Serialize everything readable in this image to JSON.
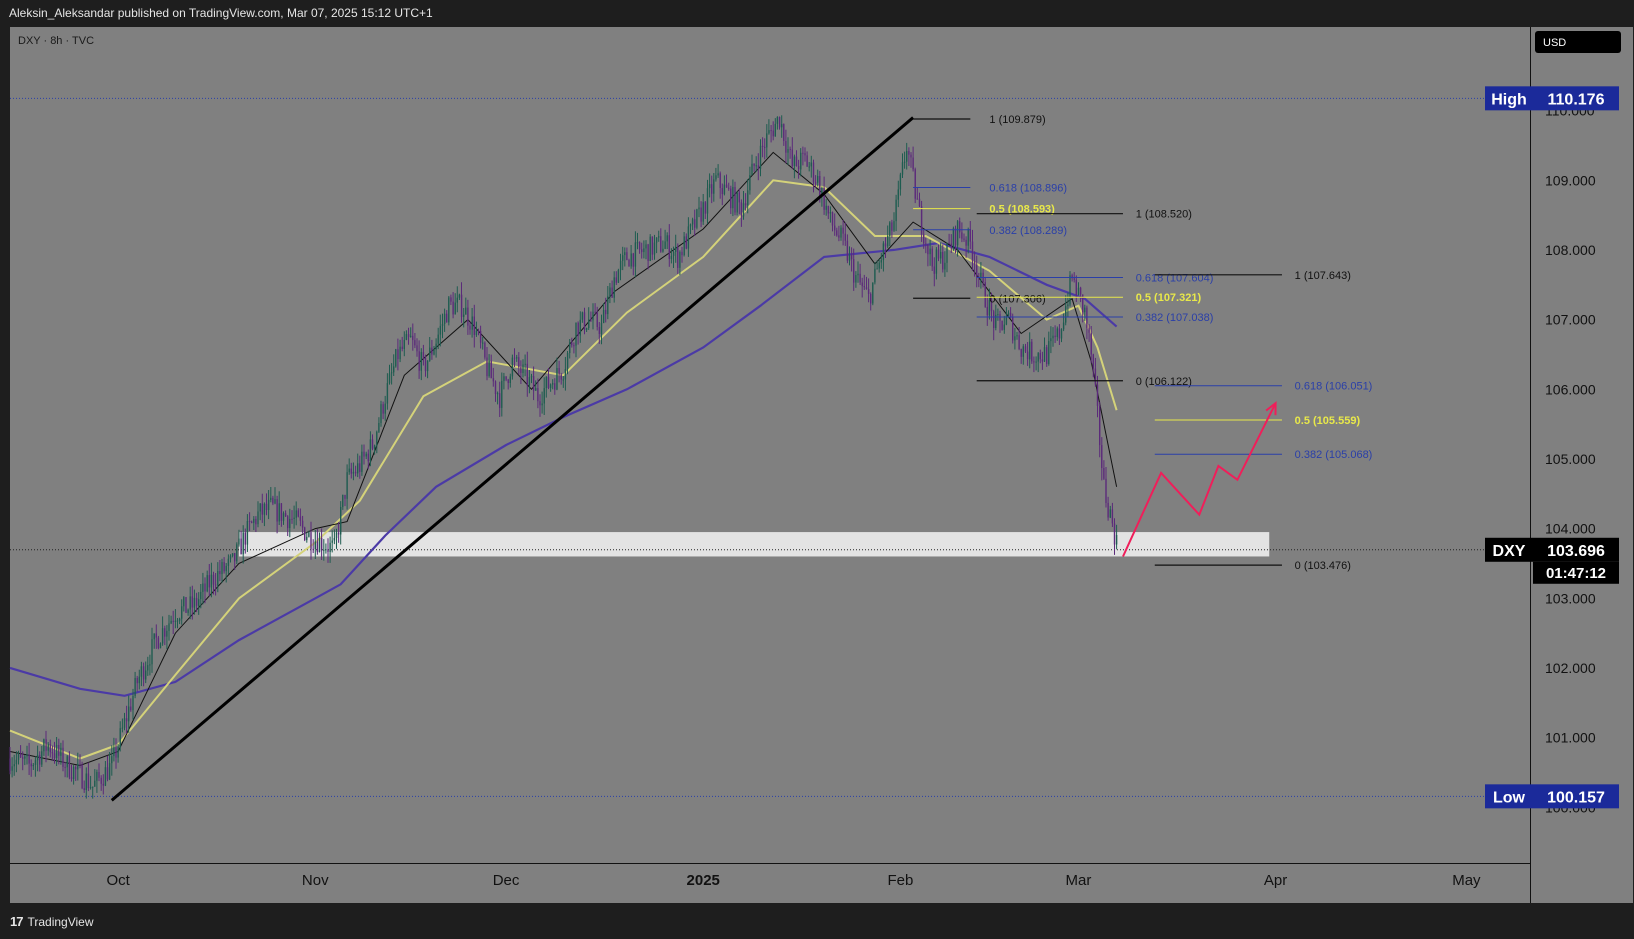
{
  "header": {
    "publisher_line": "Aleksin_Aleksandar published on TradingView.com, Mar 07, 2025 15:12 UTC+1"
  },
  "footer": {
    "brand_logo": "17",
    "brand_name": "TradingView"
  },
  "colors": {
    "plot_bg": "#808080",
    "bull_candle": "#1e5c50",
    "bear_candle": "#5b2a7a",
    "ema_fast": "#111111",
    "ema_mid": "#d4d27a",
    "ema_slow": "#4b3aa6",
    "trendline": "#000000",
    "fib_blue": "#2a3fa8",
    "fib_yellow": "#e8e84a",
    "projection": "#f01e5a",
    "badge_blue": "#1b2a9a",
    "badge_dark": "#000000"
  },
  "chart_data": {
    "type": "candlestick",
    "symbol_line": "DXY · 8h · TVC",
    "currency": "USD",
    "y_ticks": [
      "110.000",
      "109.000",
      "108.000",
      "107.000",
      "106.000",
      "105.000",
      "104.000",
      "103.000",
      "102.000",
      "101.000",
      "100.000"
    ],
    "y_tick_values": [
      110,
      109,
      108,
      107,
      106,
      105,
      104,
      103,
      102,
      101,
      100
    ],
    "ylim": [
      99.2,
      111.2
    ],
    "x_ticks": [
      {
        "label": "Oct",
        "date": "2024-10-01"
      },
      {
        "label": "Nov",
        "date": "2024-11-01"
      },
      {
        "label": "Dec",
        "date": "2024-12-01"
      },
      {
        "label": "2025",
        "date": "2025-01-01"
      },
      {
        "label": "Feb",
        "date": "2025-02-01"
      },
      {
        "label": "Mar",
        "date": "2025-03-01"
      },
      {
        "label": "Apr",
        "date": "2025-04-01"
      },
      {
        "label": "May",
        "date": "2025-05-01"
      }
    ],
    "xlim": [
      "2024-09-14",
      "2025-05-11"
    ],
    "price_path": [
      [
        "2024-09-14",
        100.7
      ],
      [
        "2024-09-17",
        100.6
      ],
      [
        "2024-09-20",
        100.9
      ],
      [
        "2024-09-23",
        100.6
      ],
      [
        "2024-09-26",
        100.4
      ],
      [
        "2024-09-27",
        100.3
      ],
      [
        "2024-09-30",
        100.6
      ],
      [
        "2024-10-02",
        101.2
      ],
      [
        "2024-10-04",
        101.8
      ],
      [
        "2024-10-07",
        102.4
      ],
      [
        "2024-10-10",
        102.8
      ],
      [
        "2024-10-13",
        102.9
      ],
      [
        "2024-10-16",
        103.3
      ],
      [
        "2024-10-19",
        103.5
      ],
      [
        "2024-10-21",
        103.9
      ],
      [
        "2024-10-23",
        104.2
      ],
      [
        "2024-10-25",
        104.3
      ],
      [
        "2024-10-27",
        104.2
      ],
      [
        "2024-10-29",
        104.1
      ],
      [
        "2024-10-31",
        103.9
      ],
      [
        "2024-11-02",
        103.8
      ],
      [
        "2024-11-04",
        103.7
      ],
      [
        "2024-11-06",
        104.7
      ],
      [
        "2024-11-08",
        104.9
      ],
      [
        "2024-11-10",
        105.2
      ],
      [
        "2024-11-12",
        105.9
      ],
      [
        "2024-11-14",
        106.5
      ],
      [
        "2024-11-16",
        106.7
      ],
      [
        "2024-11-18",
        106.3
      ],
      [
        "2024-11-20",
        106.7
      ],
      [
        "2024-11-22",
        107.2
      ],
      [
        "2024-11-24",
        107.2
      ],
      [
        "2024-11-26",
        106.9
      ],
      [
        "2024-11-28",
        106.3
      ],
      [
        "2024-11-30",
        105.9
      ],
      [
        "2024-12-02",
        106.4
      ],
      [
        "2024-12-04",
        106.2
      ],
      [
        "2024-12-06",
        105.9
      ],
      [
        "2024-12-08",
        106.1
      ],
      [
        "2024-12-10",
        106.3
      ],
      [
        "2024-12-12",
        106.9
      ],
      [
        "2024-12-14",
        107.0
      ],
      [
        "2024-12-16",
        106.9
      ],
      [
        "2024-12-18",
        107.6
      ],
      [
        "2024-12-20",
        107.9
      ],
      [
        "2024-12-23",
        108.0
      ],
      [
        "2024-12-26",
        108.1
      ],
      [
        "2024-12-28",
        107.9
      ],
      [
        "2025-01-01",
        108.6
      ],
      [
        "2025-01-03",
        109.0
      ],
      [
        "2025-01-05",
        108.8
      ],
      [
        "2025-01-07",
        108.6
      ],
      [
        "2025-01-09",
        109.2
      ],
      [
        "2025-01-11",
        109.6
      ],
      [
        "2025-01-13",
        109.9
      ],
      [
        "2025-01-15",
        109.2
      ],
      [
        "2025-01-17",
        109.3
      ],
      [
        "2025-01-19",
        109.0
      ],
      [
        "2025-01-21",
        108.4
      ],
      [
        "2025-01-23",
        108.1
      ],
      [
        "2025-01-25",
        107.6
      ],
      [
        "2025-01-27",
        107.3
      ],
      [
        "2025-01-29",
        107.9
      ],
      [
        "2025-01-31",
        108.4
      ],
      [
        "2025-02-02",
        109.5
      ],
      [
        "2025-02-04",
        108.5
      ],
      [
        "2025-02-06",
        107.8
      ],
      [
        "2025-02-08",
        107.9
      ],
      [
        "2025-02-10",
        108.3
      ],
      [
        "2025-02-12",
        108.1
      ],
      [
        "2025-02-14",
        107.4
      ],
      [
        "2025-02-16",
        106.9
      ],
      [
        "2025-02-18",
        107.0
      ],
      [
        "2025-02-20",
        106.6
      ],
      [
        "2025-02-22",
        106.5
      ],
      [
        "2025-02-24",
        106.5
      ],
      [
        "2025-02-26",
        106.8
      ],
      [
        "2025-02-28",
        107.6
      ],
      [
        "2025-03-02",
        107.1
      ],
      [
        "2025-03-03",
        106.5
      ],
      [
        "2025-03-04",
        105.6
      ],
      [
        "2025-03-05",
        104.6
      ],
      [
        "2025-03-06",
        104.2
      ],
      [
        "2025-03-07",
        103.8
      ]
    ],
    "ema_slow_path": [
      [
        "2024-09-14",
        102.0
      ],
      [
        "2024-09-25",
        101.7
      ],
      [
        "2024-10-02",
        101.6
      ],
      [
        "2024-10-10",
        101.8
      ],
      [
        "2024-10-20",
        102.4
      ],
      [
        "2024-11-01",
        103.0
      ],
      [
        "2024-11-05",
        103.2
      ],
      [
        "2024-11-12",
        103.9
      ],
      [
        "2024-11-20",
        104.6
      ],
      [
        "2024-12-01",
        105.2
      ],
      [
        "2024-12-10",
        105.6
      ],
      [
        "2024-12-20",
        106.0
      ],
      [
        "2025-01-01",
        106.6
      ],
      [
        "2025-01-10",
        107.2
      ],
      [
        "2025-01-20",
        107.9
      ],
      [
        "2025-01-31",
        108.0
      ],
      [
        "2025-02-07",
        108.1
      ],
      [
        "2025-02-15",
        107.9
      ],
      [
        "2025-02-24",
        107.5
      ],
      [
        "2025-03-02",
        107.3
      ],
      [
        "2025-03-07",
        106.9
      ]
    ],
    "ema_mid_path": [
      [
        "2024-09-14",
        101.1
      ],
      [
        "2024-09-25",
        100.7
      ],
      [
        "2024-10-01",
        100.9
      ],
      [
        "2024-10-10",
        101.9
      ],
      [
        "2024-10-20",
        103.0
      ],
      [
        "2024-11-01",
        103.8
      ],
      [
        "2024-11-08",
        104.4
      ],
      [
        "2024-11-18",
        105.9
      ],
      [
        "2024-11-28",
        106.4
      ],
      [
        "2024-12-10",
        106.2
      ],
      [
        "2024-12-20",
        107.1
      ],
      [
        "2025-01-01",
        107.9
      ],
      [
        "2025-01-12",
        109.0
      ],
      [
        "2025-01-20",
        108.9
      ],
      [
        "2025-01-28",
        108.2
      ],
      [
        "2025-02-05",
        108.2
      ],
      [
        "2025-02-15",
        107.7
      ],
      [
        "2025-02-24",
        107.0
      ],
      [
        "2025-03-01",
        107.2
      ],
      [
        "2025-03-04",
        106.6
      ],
      [
        "2025-03-07",
        105.7
      ]
    ],
    "ema_fast_path": [
      [
        "2024-09-14",
        100.8
      ],
      [
        "2024-09-25",
        100.6
      ],
      [
        "2024-10-01",
        100.8
      ],
      [
        "2024-10-10",
        102.5
      ],
      [
        "2024-10-20",
        103.5
      ],
      [
        "2024-11-01",
        104.0
      ],
      [
        "2024-11-06",
        104.1
      ],
      [
        "2024-11-15",
        106.2
      ],
      [
        "2024-11-25",
        107.0
      ],
      [
        "2024-12-05",
        106.0
      ],
      [
        "2024-12-18",
        107.4
      ],
      [
        "2025-01-01",
        108.3
      ],
      [
        "2025-01-12",
        109.4
      ],
      [
        "2025-01-20",
        108.8
      ],
      [
        "2025-01-28",
        107.8
      ],
      [
        "2025-02-03",
        108.4
      ],
      [
        "2025-02-10",
        108.0
      ],
      [
        "2025-02-20",
        106.8
      ],
      [
        "2025-02-28",
        107.3
      ],
      [
        "2025-03-03",
        106.4
      ],
      [
        "2025-03-07",
        104.6
      ]
    ],
    "trendline": {
      "from": [
        "2024-09-30",
        100.1
      ],
      "to": [
        "2025-02-03",
        109.9
      ]
    },
    "support_zone": {
      "from_date": "2024-10-20",
      "to_date": "2025-03-31",
      "low": 103.6,
      "high": 103.95
    },
    "projection_path": [
      [
        "2025-03-08",
        103.6
      ],
      [
        "2025-03-14",
        104.8
      ],
      [
        "2025-03-20",
        104.2
      ],
      [
        "2025-03-23",
        104.9
      ],
      [
        "2025-03-26",
        104.7
      ],
      [
        "2025-04-01",
        105.8
      ]
    ],
    "fib_drawings": [
      {
        "start": "2025-02-03",
        "end": "2025-02-12",
        "levels": [
          {
            "label": "1 (109.879)",
            "value": 109.879,
            "color": "black"
          },
          {
            "label": "0.618 (108.896)",
            "value": 108.896,
            "color": "blue"
          },
          {
            "label": "0.5 (108.593)",
            "value": 108.593,
            "color": "yellow"
          },
          {
            "label": "0.382 (108.289)",
            "value": 108.289,
            "color": "blue"
          },
          {
            "label": "0 (107.306)",
            "value": 107.306,
            "color": "black"
          }
        ],
        "label_date": "2025-02-15"
      },
      {
        "start": "2025-02-13",
        "end": "2025-03-08",
        "levels": [
          {
            "label": "1 (108.520)",
            "value": 108.52,
            "color": "black"
          },
          {
            "label": "0.618 (107.604)",
            "value": 107.604,
            "color": "blue"
          },
          {
            "label": "0.5 (107.321)",
            "value": 107.321,
            "color": "yellow"
          },
          {
            "label": "0.382 (107.038)",
            "value": 107.038,
            "color": "blue"
          },
          {
            "label": "0 (106.122)",
            "value": 106.122,
            "color": "black"
          }
        ],
        "label_date": "2025-03-10"
      },
      {
        "start": "2025-03-13",
        "end": "2025-04-02",
        "levels": [
          {
            "label": "1 (107.643)",
            "value": 107.643,
            "color": "black"
          },
          {
            "label": "0.618 (106.051)",
            "value": 106.051,
            "color": "blue"
          },
          {
            "label": "0.5 (105.559)",
            "value": 105.559,
            "color": "yellow"
          },
          {
            "label": "0.382 (105.068)",
            "value": 105.068,
            "color": "blue"
          },
          {
            "label": "0 (103.476)",
            "value": 103.476,
            "color": "black"
          }
        ],
        "label_date": "2025-04-04"
      }
    ],
    "high": {
      "label": "High",
      "value": "110.176",
      "price": 110.176
    },
    "low": {
      "label": "Low",
      "value": "100.157",
      "price": 100.157
    },
    "last": {
      "symbol": "DXY",
      "price_text": "103.696",
      "countdown": "01:47:12",
      "price": 103.696
    }
  }
}
